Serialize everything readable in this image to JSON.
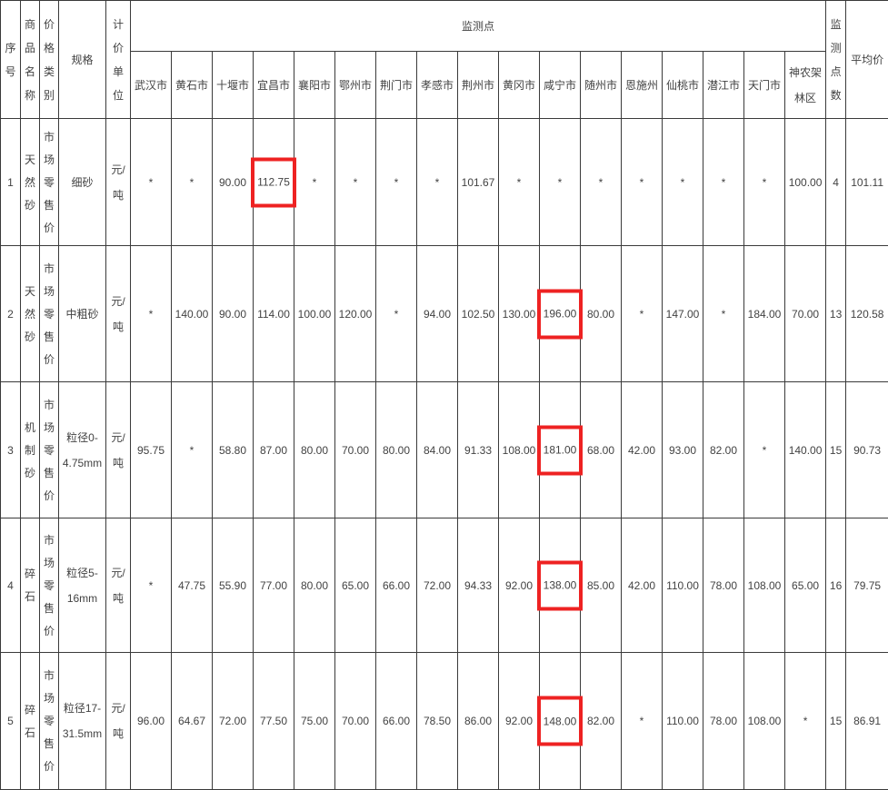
{
  "colors": {
    "highlight_border": "#ee2222",
    "grid": "#3a3a3a",
    "text": "#424242",
    "background": "#ffffff"
  },
  "table": {
    "headers": {
      "serial": "序号",
      "product": "商品名称",
      "category": "价格类别",
      "spec": "规格",
      "unit": "计价单位",
      "monitoring": "监测点",
      "count": "监测点数",
      "avg": "平均价"
    },
    "cities": [
      "武汉市",
      "黄石市",
      "十堰市",
      "宜昌市",
      "襄阳市",
      "鄂州市",
      "荆门市",
      "孝感市",
      "荆州市",
      "黄冈市",
      "咸宁市",
      "随州市",
      "恩施州",
      "仙桃市",
      "潜江市",
      "天门市",
      "神农架\n林区"
    ],
    "rows": [
      {
        "no": "1",
        "product": "天然砂",
        "category": "市场零售价",
        "spec": "细砂",
        "unit": "元/\n吨",
        "values": [
          "*",
          "*",
          "90.00",
          "112.75",
          "*",
          "*",
          "*",
          "*",
          "101.67",
          "*",
          "*",
          "*",
          "*",
          "*",
          "*",
          "*",
          "100.00"
        ],
        "highlight_index": 3,
        "count": "4",
        "avg": "101.11"
      },
      {
        "no": "2",
        "product": "天然砂",
        "category": "市场零售价",
        "spec": "中粗砂",
        "unit": "元/\n吨",
        "values": [
          "*",
          "140.00",
          "90.00",
          "114.00",
          "100.00",
          "120.00",
          "*",
          "94.00",
          "102.50",
          "130.00",
          "196.00",
          "80.00",
          "*",
          "147.00",
          "*",
          "184.00",
          "70.00"
        ],
        "highlight_index": 10,
        "count": "13",
        "avg": "120.58"
      },
      {
        "no": "3",
        "product": "机制砂",
        "category": "市场零售价",
        "spec": "粒径0-\n4.75mm",
        "unit": "元/\n吨",
        "values": [
          "95.75",
          "*",
          "58.80",
          "87.00",
          "80.00",
          "70.00",
          "80.00",
          "84.00",
          "91.33",
          "108.00",
          "181.00",
          "68.00",
          "42.00",
          "93.00",
          "82.00",
          "*",
          "140.00"
        ],
        "highlight_index": 10,
        "count": "15",
        "avg": "90.73"
      },
      {
        "no": "4",
        "product": "碎石",
        "category": "市场零售价",
        "spec": "粒径5-\n16mm",
        "unit": "元/\n吨",
        "values": [
          "*",
          "47.75",
          "55.90",
          "77.00",
          "80.00",
          "65.00",
          "66.00",
          "72.00",
          "94.33",
          "92.00",
          "138.00",
          "85.00",
          "42.00",
          "110.00",
          "78.00",
          "108.00",
          "65.00"
        ],
        "highlight_index": 10,
        "count": "16",
        "avg": "79.75"
      },
      {
        "no": "5",
        "product": "碎石",
        "category": "市场零售价",
        "spec": "粒径17-\n31.5mm",
        "unit": "元/\n吨",
        "values": [
          "96.00",
          "64.67",
          "72.00",
          "77.50",
          "75.00",
          "70.00",
          "66.00",
          "78.50",
          "86.00",
          "92.00",
          "148.00",
          "82.00",
          "*",
          "110.00",
          "78.00",
          "108.00",
          "*"
        ],
        "highlight_index": 10,
        "count": "15",
        "avg": "86.91"
      }
    ]
  }
}
